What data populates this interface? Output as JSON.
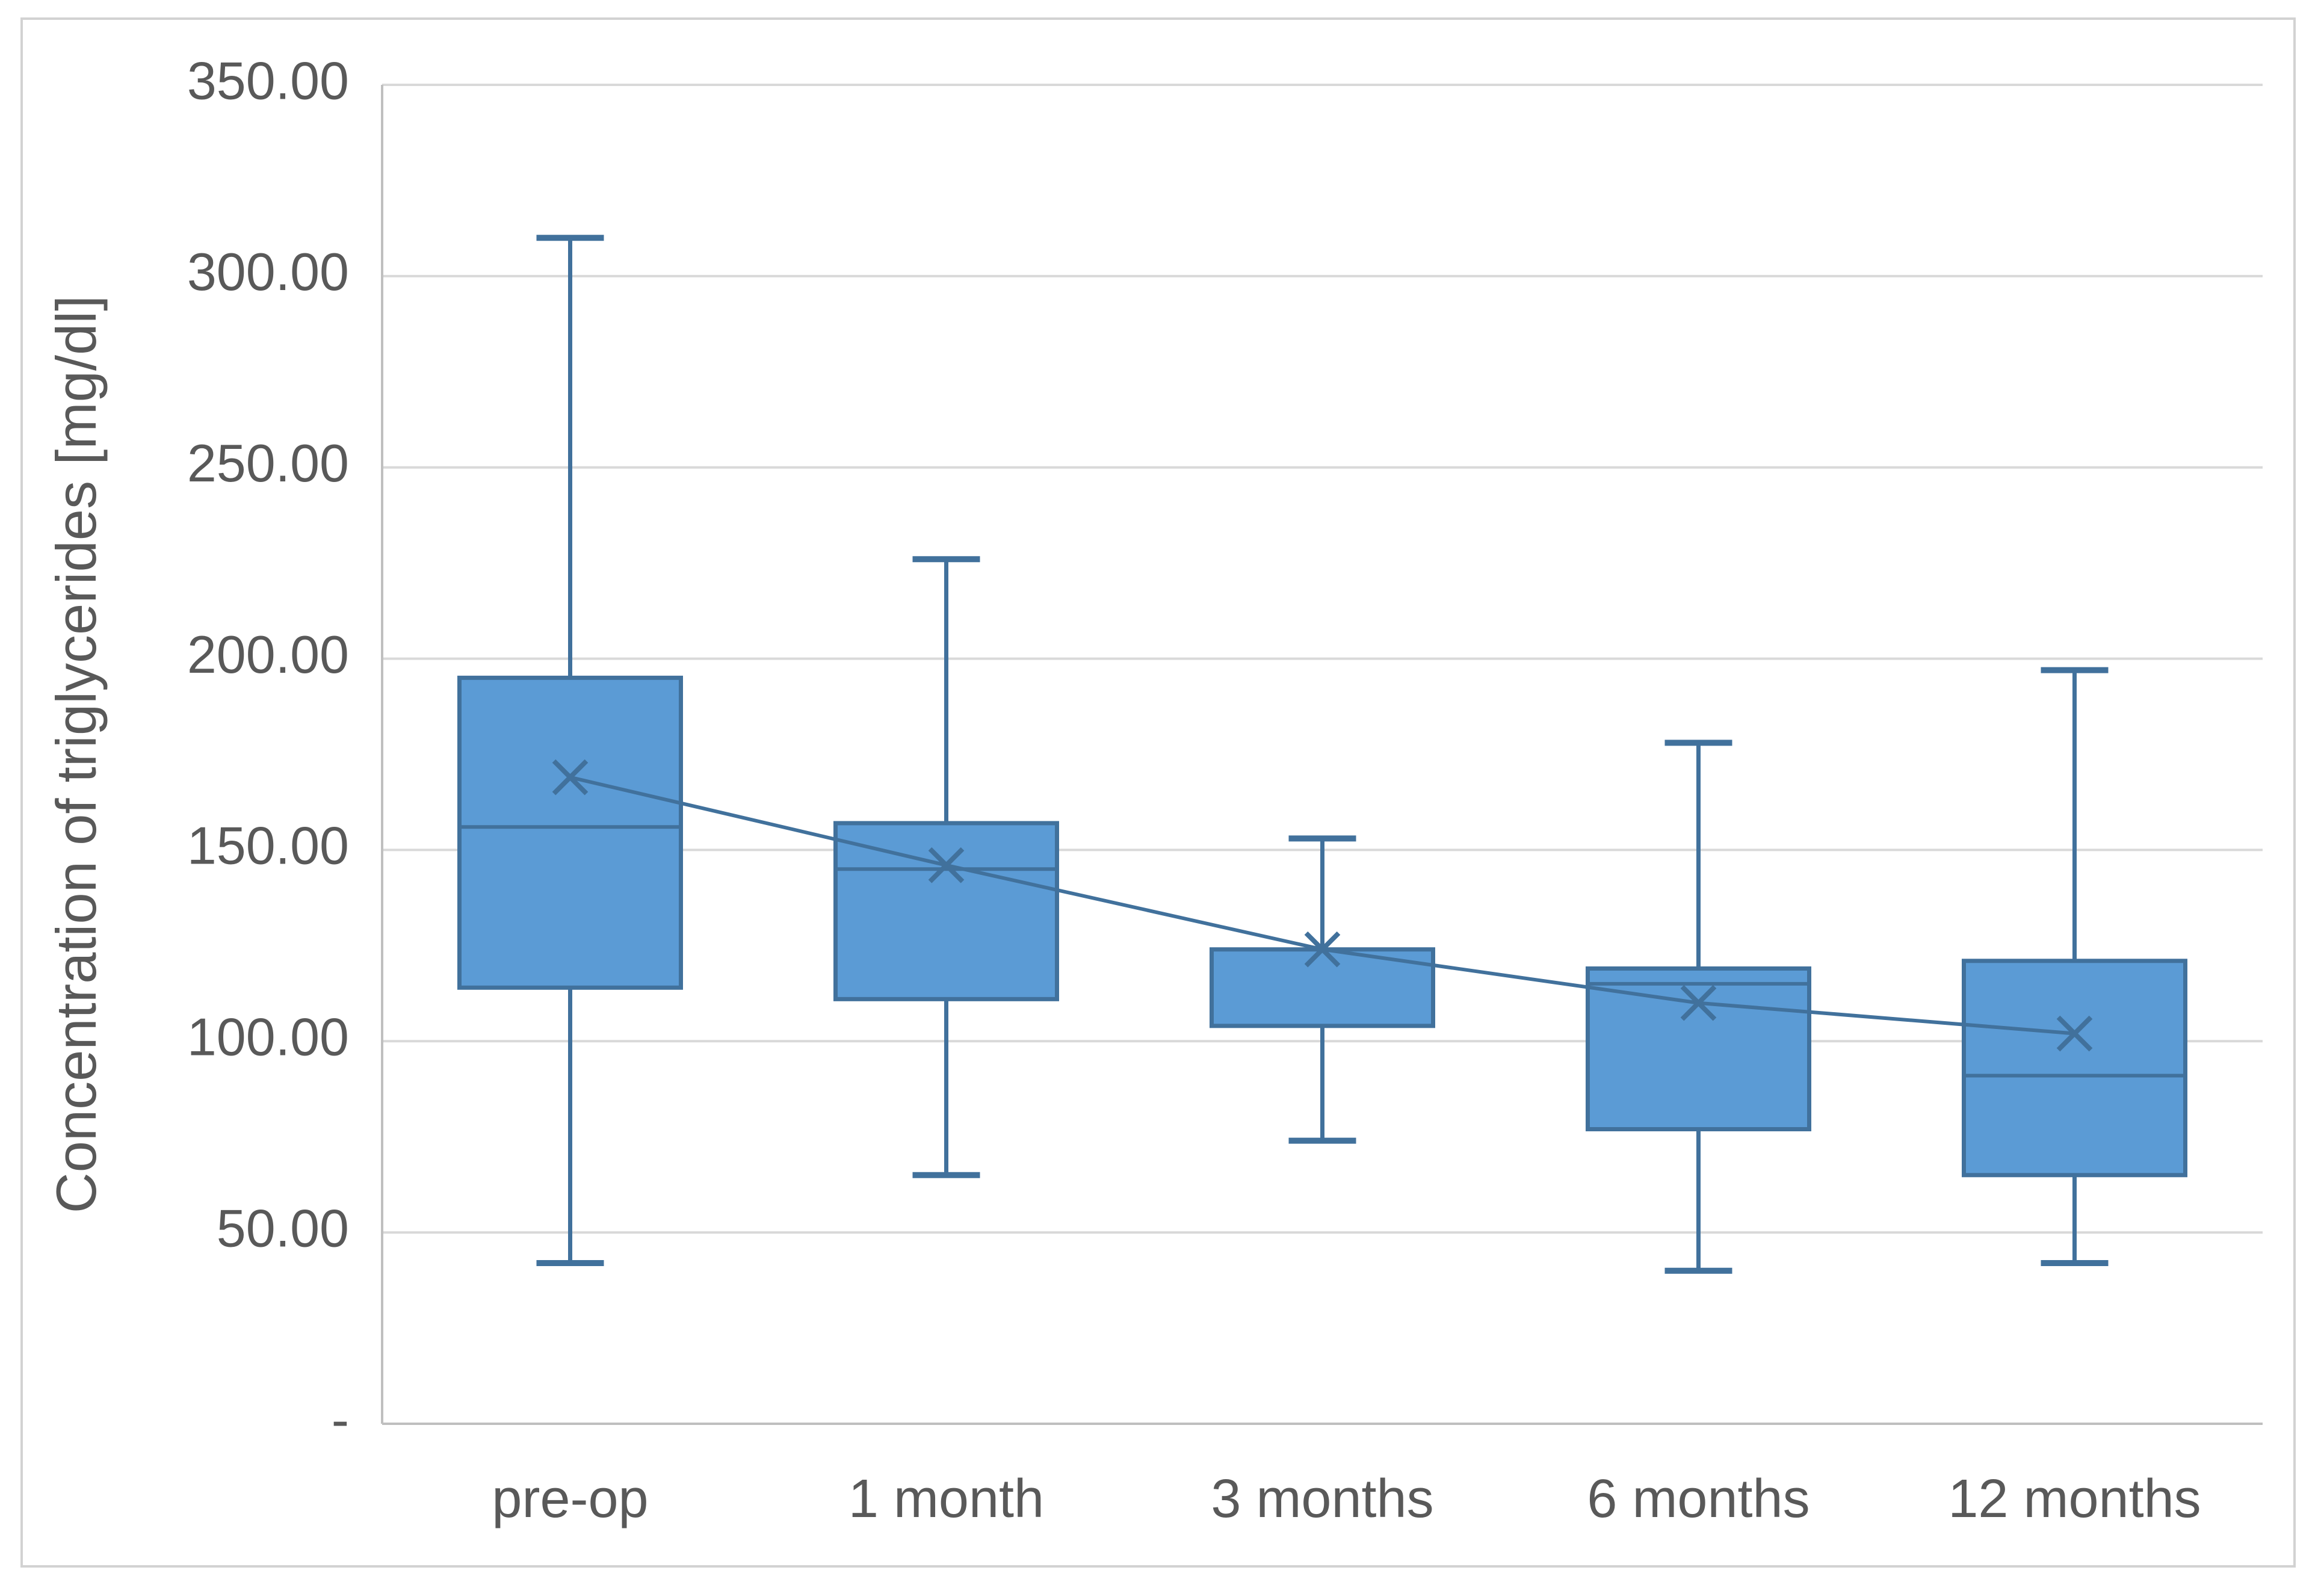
{
  "figure": {
    "background": "#FFFFFF",
    "border_color": "#D2D2D2"
  },
  "chart_data": {
    "type": "box",
    "title": "",
    "xlabel": "",
    "ylabel": "Concentration of triglycerides [mg/dl]",
    "ylim": [
      0,
      350
    ],
    "ytick_step": 50,
    "grid": true,
    "legend": "none",
    "yticks": [
      {
        "value": 350,
        "label": "350.00"
      },
      {
        "value": 300,
        "label": "300.00"
      },
      {
        "value": 250,
        "label": "250.00"
      },
      {
        "value": 200,
        "label": "200.00"
      },
      {
        "value": 150,
        "label": "150.00"
      },
      {
        "value": 100,
        "label": "100.00"
      },
      {
        "value": 50,
        "label": "50.00"
      },
      {
        "value": 0,
        "label": "-"
      }
    ],
    "categories": [
      "pre-op",
      "1 month",
      "3 months",
      "6 months",
      "12 months"
    ],
    "boxes": [
      {
        "category": "pre-op",
        "whisker_low": 42,
        "q1": 114,
        "median": 156,
        "mean": 169,
        "q3": 195,
        "whisker_high": 310
      },
      {
        "category": "1 month",
        "whisker_low": 65,
        "q1": 111,
        "median": 145,
        "mean": 146,
        "q3": 157,
        "whisker_high": 226
      },
      {
        "category": "3 months",
        "whisker_low": 74,
        "q1": 104,
        "median": 124,
        "mean": 124,
        "q3": 124,
        "whisker_high": 153
      },
      {
        "category": "6 months",
        "whisker_low": 40,
        "q1": 77,
        "median": 115,
        "mean": 110,
        "q3": 119,
        "whisker_high": 178
      },
      {
        "category": "12 months",
        "whisker_low": 42,
        "q1": 65,
        "median": 91,
        "mean": 102,
        "q3": 121,
        "whisker_high": 197
      }
    ],
    "mean_line_values": [
      169,
      146,
      124,
      110,
      102
    ],
    "colors": {
      "box_fill": "#5B9BD5",
      "box_border": "#41719C",
      "whisker": "#41719C",
      "median": "#41719C",
      "mean_marker": "#41719C",
      "mean_line": "#41719C",
      "gridline": "#D9D9D9",
      "axis_line": "#BFBFBF",
      "tick_label": "#595959",
      "axis_title": "#595959"
    }
  }
}
